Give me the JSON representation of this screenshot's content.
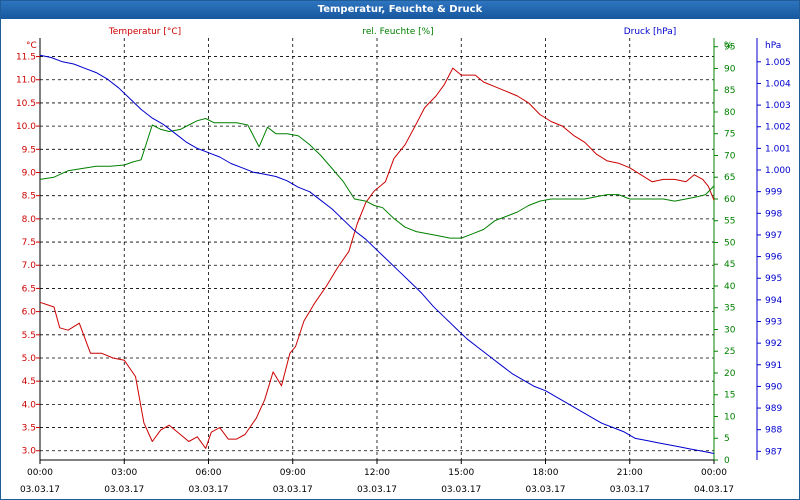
{
  "window": {
    "title": "Temperatur, Feuchte & Druck"
  },
  "chart_data": {
    "type": "line",
    "title": "Temperatur, Feuchte & Druck",
    "x_tick_labels": [
      {
        "time": "00:00",
        "date": "03.03.17"
      },
      {
        "time": "03:00",
        "date": "03.03.17"
      },
      {
        "time": "06:00",
        "date": "03.03.17"
      },
      {
        "time": "09:00",
        "date": "03.03.17"
      },
      {
        "time": "12:00",
        "date": "03.03.17"
      },
      {
        "time": "15:00",
        "date": "03.03.17"
      },
      {
        "time": "18:00",
        "date": "03.03.17"
      },
      {
        "time": "21:00",
        "date": "03.03.17"
      },
      {
        "time": "00:00",
        "date": "04.03.17"
      }
    ],
    "xlim_hours": [
      0,
      24
    ],
    "grid": true,
    "axes": {
      "temperature": {
        "label": "Temperatur [°C]",
        "unit": "°C",
        "side": "left",
        "color": "#cc0000",
        "ylim": [
          2.8,
          11.9
        ],
        "ticks": [
          "3.0",
          "3.5",
          "4.0",
          "4.5",
          "5.0",
          "5.5",
          "6.0",
          "6.5",
          "7.0",
          "7.5",
          "8.0",
          "8.5",
          "9.0",
          "9.5",
          "10.0",
          "10.5",
          "11.0",
          "11.5"
        ]
      },
      "humidity": {
        "label": "rel. Feuchte [%]",
        "unit": "%",
        "side": "right",
        "color": "#008000",
        "ylim": [
          0,
          97
        ],
        "ticks": [
          "0",
          "5",
          "10",
          "15",
          "20",
          "25",
          "30",
          "35",
          "40",
          "45",
          "50",
          "55",
          "60",
          "65",
          "70",
          "75",
          "80",
          "85",
          "90",
          "95"
        ]
      },
      "pressure": {
        "label": "Druck [hPa]",
        "unit": "hPa",
        "side": "right",
        "color": "#0000cc",
        "ylim": [
          986.6,
          1006.1
        ],
        "ticks": [
          "987",
          "988",
          "989",
          "990",
          "991",
          "992",
          "993",
          "994",
          "995",
          "996",
          "997",
          "998",
          "999",
          "1.000",
          "1.001",
          "1.002",
          "1.003",
          "1.004",
          "1.005"
        ]
      }
    },
    "series": [
      {
        "name": "Temperatur [°C]",
        "axis": "temperature",
        "color": "#cc0000",
        "x": [
          0,
          0.5,
          0.7,
          1.0,
          1.4,
          1.8,
          2.2,
          2.6,
          3.0,
          3.4,
          3.7,
          4.0,
          4.3,
          4.6,
          5.0,
          5.3,
          5.6,
          5.9,
          6.1,
          6.4,
          6.7,
          7.0,
          7.3,
          7.7,
          8.0,
          8.3,
          8.6,
          8.9,
          9.1,
          9.4,
          9.8,
          10.2,
          10.6,
          11.0,
          11.3,
          11.6,
          11.9,
          12.3,
          12.6,
          13.0,
          13.4,
          13.7,
          14.1,
          14.4,
          14.7,
          15.0,
          15.2,
          15.5,
          15.8,
          16.2,
          16.6,
          17.0,
          17.4,
          17.8,
          18.2,
          18.6,
          19.0,
          19.4,
          19.8,
          20.2,
          20.6,
          21.0,
          21.4,
          21.8,
          22.2,
          22.6,
          23.0,
          23.3,
          23.6,
          23.8,
          24.0
        ],
        "y": [
          6.2,
          6.1,
          5.65,
          5.6,
          5.75,
          5.1,
          5.1,
          5.0,
          4.95,
          4.6,
          3.6,
          3.2,
          3.45,
          3.55,
          3.35,
          3.2,
          3.3,
          3.05,
          3.4,
          3.5,
          3.25,
          3.25,
          3.35,
          3.7,
          4.1,
          4.7,
          4.4,
          5.1,
          5.25,
          5.8,
          6.2,
          6.55,
          6.95,
          7.3,
          7.9,
          8.35,
          8.6,
          8.8,
          9.3,
          9.6,
          10.05,
          10.4,
          10.65,
          10.9,
          11.25,
          11.1,
          11.1,
          11.1,
          10.95,
          10.85,
          10.75,
          10.65,
          10.5,
          10.25,
          10.1,
          10.0,
          9.8,
          9.65,
          9.4,
          9.25,
          9.2,
          9.1,
          8.95,
          8.8,
          8.85,
          8.85,
          8.8,
          8.95,
          8.85,
          8.7,
          8.4
        ]
      },
      {
        "name": "rel. Feuchte [%]",
        "axis": "humidity",
        "color": "#008000",
        "x": [
          0,
          0.5,
          1.0,
          1.5,
          2.0,
          2.5,
          3.0,
          3.3,
          3.6,
          3.8,
          4.0,
          4.3,
          4.6,
          5.0,
          5.3,
          5.6,
          5.9,
          6.2,
          6.6,
          7.0,
          7.4,
          7.8,
          8.1,
          8.4,
          8.8,
          9.2,
          9.6,
          10.0,
          10.4,
          10.8,
          11.2,
          11.6,
          11.9,
          12.2,
          12.6,
          13.0,
          13.4,
          13.8,
          14.2,
          14.6,
          15.0,
          15.4,
          15.8,
          16.2,
          16.6,
          17.0,
          17.4,
          17.8,
          18.2,
          18.6,
          19.0,
          19.4,
          19.8,
          20.2,
          20.6,
          21.0,
          21.4,
          21.8,
          22.2,
          22.6,
          23.0,
          23.4,
          23.7,
          24.0
        ],
        "y": [
          64.5,
          65,
          66.5,
          67,
          67.5,
          67.5,
          67.8,
          68.5,
          69,
          73,
          77,
          76,
          75.5,
          76,
          77,
          78,
          78.5,
          77.5,
          77.5,
          77.5,
          77,
          72,
          76.5,
          75,
          75,
          74.5,
          72.5,
          70,
          67,
          64,
          60,
          59.5,
          58.5,
          58,
          55.5,
          53.5,
          52.5,
          52,
          51.5,
          51,
          51,
          52,
          53,
          55,
          56,
          57,
          58.5,
          59.5,
          60,
          60,
          60,
          60,
          60.5,
          61,
          61,
          60,
          60,
          60,
          60,
          59.5,
          60,
          60.5,
          61,
          63
        ]
      },
      {
        "name": "Druck [hPa]",
        "axis": "pressure",
        "color": "#0000cc",
        "x": [
          0,
          0.4,
          0.8,
          1.2,
          1.6,
          2.0,
          2.4,
          2.8,
          3.2,
          3.6,
          4.0,
          4.4,
          4.8,
          5.2,
          5.6,
          6.0,
          6.4,
          6.8,
          7.2,
          7.6,
          8.0,
          8.4,
          8.8,
          9.2,
          9.6,
          10.0,
          10.4,
          10.8,
          11.2,
          11.6,
          12.0,
          12.4,
          12.8,
          13.2,
          13.6,
          14.0,
          14.4,
          14.8,
          15.2,
          15.6,
          16.0,
          16.4,
          16.8,
          17.2,
          17.6,
          18.0,
          18.4,
          18.8,
          19.2,
          19.6,
          20.0,
          20.4,
          20.8,
          21.2,
          21.6,
          22.0,
          22.4,
          22.8,
          23.2,
          23.6,
          24.0
        ],
        "y": [
          1005.3,
          1005.2,
          1005.0,
          1004.9,
          1004.7,
          1004.5,
          1004.2,
          1003.8,
          1003.3,
          1002.8,
          1002.4,
          1002.1,
          1001.7,
          1001.3,
          1001.0,
          1000.8,
          1000.6,
          1000.3,
          1000.1,
          999.9,
          999.8,
          999.7,
          999.5,
          999.2,
          999.0,
          998.6,
          998.2,
          997.7,
          997.2,
          996.8,
          996.3,
          995.8,
          995.3,
          994.8,
          994.3,
          993.7,
          993.2,
          992.7,
          992.2,
          991.8,
          991.4,
          991.0,
          990.6,
          990.3,
          990.0,
          989.8,
          989.5,
          989.2,
          988.9,
          988.6,
          988.3,
          988.1,
          987.9,
          987.6,
          987.5,
          987.4,
          987.3,
          987.2,
          987.1,
          987.0,
          986.9
        ]
      }
    ]
  }
}
